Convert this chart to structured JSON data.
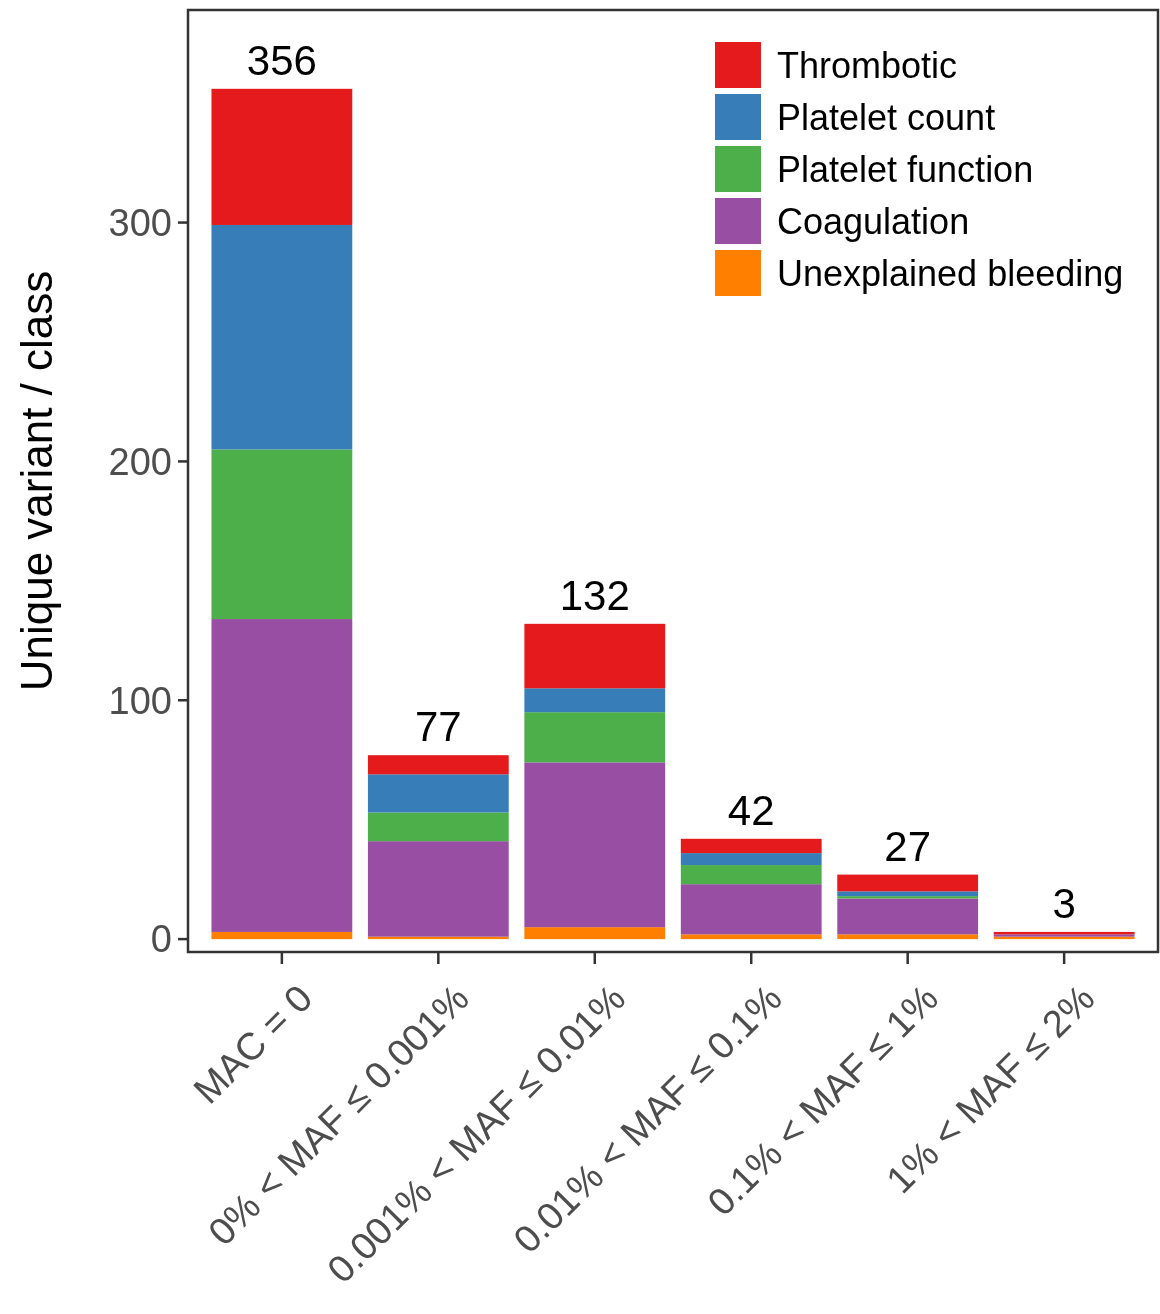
{
  "chart_data": {
    "type": "bar",
    "stacked": true,
    "ylabel": "Unique variant / class",
    "categories": [
      "MAC = 0",
      "0% < MAF ≤ 0.001%",
      "0.001% < MAF ≤ 0.01%",
      "0.01% < MAF ≤ 0.1%",
      "0.1% < MAF ≤ 1%",
      "1% < MAF ≤ 2%"
    ],
    "series": [
      {
        "name": "Unexplained bleeding",
        "color": "#ff7f00",
        "values": [
          3,
          1,
          5,
          2,
          2,
          1
        ]
      },
      {
        "name": "Coagulation",
        "color": "#984ea3",
        "values": [
          131,
          40,
          69,
          21,
          15,
          1
        ]
      },
      {
        "name": "Platelet function",
        "color": "#4daf4a",
        "values": [
          71,
          12,
          21,
          8,
          1,
          0
        ]
      },
      {
        "name": "Platelet count",
        "color": "#377eb8",
        "values": [
          94,
          16,
          10,
          5,
          2,
          0
        ]
      },
      {
        "name": "Thrombotic",
        "color": "#e41a1c",
        "values": [
          57,
          8,
          27,
          6,
          7,
          1
        ]
      }
    ],
    "totals": [
      "356",
      "77",
      "132",
      "42",
      "27",
      "3"
    ],
    "ylim": [
      -5.4,
      389
    ],
    "yticks": [
      0,
      100,
      200,
      300
    ],
    "grid": false,
    "legend": "top right"
  }
}
